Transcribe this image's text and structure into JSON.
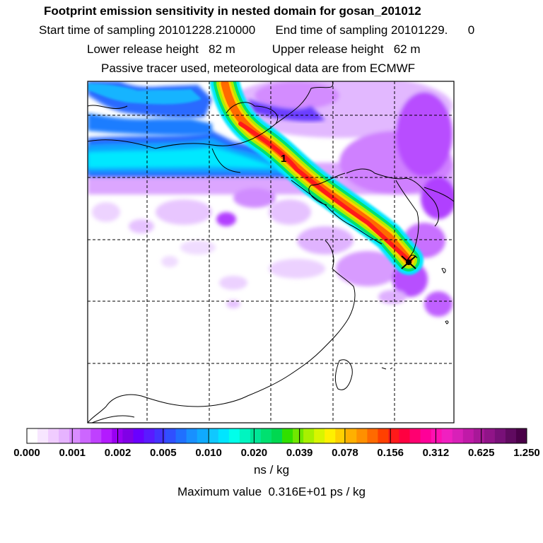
{
  "header": {
    "title": "Footprint emission sensitivity in nested domain for gosan_201012",
    "sampling_line": "Start time of sampling 20101228.210000      End time of sampling 20101229.      0",
    "release_line": "Lower release height   82 m           Upper release height   62 m",
    "tracer_line": "Passive tracer used, meteorological data are from ECMWF"
  },
  "map": {
    "release_marker_label": "1",
    "receptor_marker": "x-cross-icon"
  },
  "colorbar": {
    "tick_labels": [
      "0.000",
      "0.001",
      "0.002",
      "0.005",
      "0.010",
      "0.020",
      "0.039",
      "0.078",
      "0.156",
      "0.312",
      "0.625",
      "1.250"
    ],
    "colors": [
      "#ffffff",
      "#f7e6ff",
      "#f0ccff",
      "#e6b3ff",
      "#d98cff",
      "#cc66ff",
      "#bf40ff",
      "#b31aff",
      "#9900f2",
      "#8000e6",
      "#6a00ff",
      "#5a1aff",
      "#4433ff",
      "#3050ff",
      "#2070ff",
      "#1890ff",
      "#10aaff",
      "#10c8ff",
      "#00e5ff",
      "#00ffea",
      "#00f5c0",
      "#00e696",
      "#00e070",
      "#00d850",
      "#30e000",
      "#70e800",
      "#a8f000",
      "#d8f500",
      "#fff000",
      "#ffd000",
      "#ffb000",
      "#ff9000",
      "#ff6a00",
      "#ff4000",
      "#ff1a1a",
      "#ff0040",
      "#ff0070",
      "#ff0098",
      "#ff10b0",
      "#f020c0",
      "#d820b8",
      "#c01aa8",
      "#a81898",
      "#901488",
      "#781078",
      "#600a60",
      "#4a0048"
    ],
    "units": "ns / kg"
  },
  "footer": {
    "max_value": "Maximum value  0.316E+01 ps / kg"
  }
}
